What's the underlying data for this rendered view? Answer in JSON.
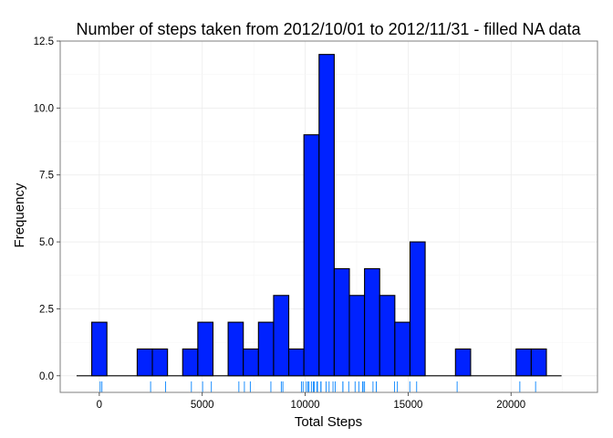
{
  "chart_data": {
    "type": "bar",
    "title": "Number of steps taken from 2012/10/01 to 2012/11/31 - filled NA data",
    "xlabel": "Total Steps",
    "ylabel": "Frequency",
    "xlim": [
      -1900,
      24200
    ],
    "ylim": [
      -0.62,
      12.5
    ],
    "x_ticks": [
      0,
      5000,
      10000,
      15000,
      20000
    ],
    "y_ticks": [
      0.0,
      2.5,
      5.0,
      7.5,
      10.0,
      12.5
    ],
    "x_tick_labels": [
      "0",
      "5000",
      "10000",
      "15000",
      "20000"
    ],
    "y_tick_labels": [
      "0.0",
      "2.5",
      "5.0",
      "7.5",
      "10.0",
      "12.5"
    ],
    "binwidth": 736.2,
    "bin_centers": [
      -736.2,
      0,
      736.2,
      1472.4,
      2208.6,
      2944.8,
      3681,
      4417.2,
      5153.4,
      5889.6,
      6625.8,
      7362,
      8098.2,
      8834.4,
      9570.6,
      10306.8,
      11043,
      11779.2,
      12515.4,
      13251.6,
      13987.8,
      14724,
      15460.2,
      16196.4,
      16932.6,
      17668.8,
      18405,
      19141.2,
      19877.4,
      20613.6,
      21349.8,
      22086
    ],
    "counts": [
      0,
      2,
      0,
      0,
      1,
      1,
      0,
      1,
      2,
      0,
      2,
      1,
      2,
      3,
      1,
      9,
      12,
      4,
      3,
      4,
      3,
      2,
      5,
      0,
      0,
      1,
      0,
      0,
      0,
      1,
      1,
      0
    ],
    "rug_values": [
      41,
      126,
      2492,
      3219,
      4472,
      5018,
      5441,
      6778,
      7047,
      7336,
      8334,
      8841,
      8918,
      9819,
      9900,
      10056,
      10139,
      10183,
      10304,
      10395,
      10439,
      10571,
      10600,
      10765,
      10766,
      10766,
      11015,
      11162,
      11352,
      11458,
      11829,
      11834,
      12116,
      12426,
      12608,
      12787,
      12811,
      12883,
      13294,
      13452,
      13460,
      14339,
      14478,
      15084,
      15414,
      17382,
      20427,
      21194
    ],
    "grid": true,
    "colors": {
      "bar_fill": "#0022ff",
      "bar_outline": "#000000",
      "rug": "#1e90ff",
      "grid": "#ebebeb"
    }
  }
}
